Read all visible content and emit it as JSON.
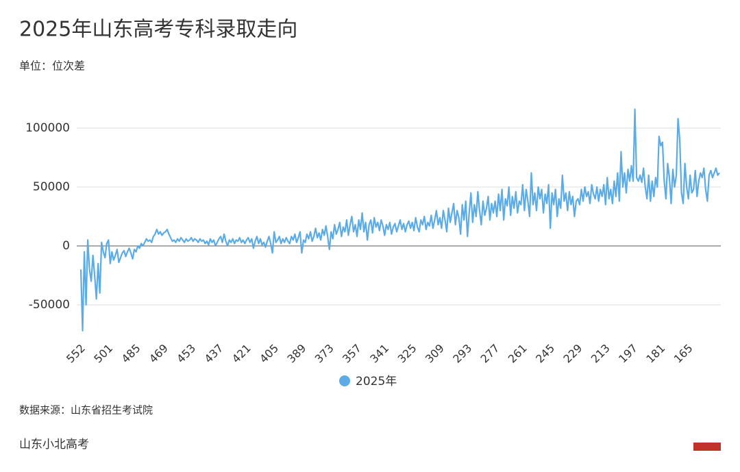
{
  "chart_data": {
    "type": "line",
    "title": "2025年山东高考专科录取走向",
    "subtitle": "单位：位次差",
    "source": "数据来源：山东省招生考试院",
    "footer": "山东小北高考",
    "categories": [
      "552",
      null,
      null,
      null,
      null,
      null,
      null,
      null,
      null,
      null,
      null,
      null,
      null,
      null,
      null,
      null,
      "501",
      null,
      null,
      null,
      null,
      null,
      null,
      null,
      null,
      null,
      null,
      null,
      null,
      null,
      null,
      null,
      "485",
      null,
      null,
      null,
      null,
      null,
      null,
      null,
      null,
      null,
      null,
      null,
      null,
      null,
      null,
      null,
      "469",
      null,
      null,
      null,
      null,
      null,
      null,
      null,
      null,
      null,
      null,
      null,
      null,
      null,
      null,
      null,
      "453",
      null,
      null,
      null,
      null,
      null,
      null,
      null,
      null,
      null,
      null,
      null,
      null,
      null,
      null,
      null,
      "437",
      null,
      null,
      null,
      null,
      null,
      null,
      null,
      null,
      null,
      null,
      null,
      null,
      null,
      null,
      null,
      "421",
      null,
      null,
      null,
      null,
      null,
      null,
      null,
      null,
      null,
      null,
      null,
      null,
      null,
      null,
      null,
      "405",
      null,
      null,
      null,
      null,
      null,
      null,
      null,
      null,
      null,
      null,
      null,
      null,
      null,
      null,
      null,
      "389",
      null,
      null,
      null,
      null,
      null,
      null,
      null,
      null,
      null,
      null,
      null,
      null,
      null,
      null,
      null,
      "373",
      null,
      null,
      null,
      null,
      null,
      null,
      null,
      null,
      null,
      null,
      null,
      null,
      null,
      null,
      null,
      "357",
      null,
      null,
      null,
      null,
      null,
      null,
      null,
      null,
      null,
      null,
      null,
      null,
      null,
      null,
      null,
      "341",
      null,
      null,
      null,
      null,
      null,
      null,
      null,
      null,
      null,
      null,
      null,
      null,
      null,
      null,
      null,
      "325",
      null,
      null,
      null,
      null,
      null,
      null,
      null,
      null,
      null,
      null,
      null,
      null,
      null,
      null,
      null,
      "309",
      null,
      null,
      null,
      null,
      null,
      null,
      null,
      null,
      null,
      null,
      null,
      null,
      null,
      null,
      null,
      "293",
      null,
      null,
      null,
      null,
      null,
      null,
      null,
      null,
      null,
      null,
      null,
      null,
      null,
      null,
      null,
      "277",
      null,
      null,
      null,
      null,
      null,
      null,
      null,
      null,
      null,
      null,
      null,
      null,
      null,
      null,
      null,
      "261",
      null,
      null,
      null,
      null,
      null,
      null,
      null,
      null,
      null,
      null,
      null,
      null,
      null,
      null,
      null,
      "245",
      null,
      null,
      null,
      null,
      null,
      null,
      null,
      null,
      null,
      null,
      null,
      null,
      null,
      null,
      null,
      "229",
      null,
      null,
      null,
      null,
      null,
      null,
      null,
      null,
      null,
      null,
      null,
      null,
      null,
      null,
      null,
      "213",
      null,
      null,
      null,
      null,
      null,
      null,
      null,
      null,
      null,
      null,
      null,
      null,
      null,
      null,
      null,
      "197",
      null,
      null,
      null,
      null,
      null,
      null,
      null,
      null,
      null,
      null,
      null,
      null,
      null,
      null,
      null,
      "181",
      null,
      null,
      null,
      null,
      null,
      null,
      null,
      null,
      null,
      null,
      null,
      null,
      null,
      null,
      null,
      "165",
      null,
      null,
      null,
      null,
      null,
      null,
      null,
      null,
      null,
      null,
      null,
      null,
      null,
      null,
      null,
      null,
      null,
      null
    ],
    "series": [
      {
        "name": "2025年",
        "color": "#5aabe6",
        "values": [
          -20000,
          -72000,
          -5000,
          -50000,
          5000,
          -20000,
          -30000,
          -8000,
          -25000,
          -45000,
          -15000,
          -40000,
          3000,
          -5000,
          -10000,
          2000,
          5000,
          -15000,
          -5000,
          -12000,
          -8000,
          -3000,
          -14000,
          -10000,
          -6000,
          -4000,
          -9000,
          -5000,
          -2000,
          -6000,
          -11000,
          -3000,
          -5000,
          0,
          -2000,
          2000,
          0,
          3000,
          6000,
          4000,
          5000,
          3000,
          8000,
          10000,
          14000,
          10000,
          12000,
          9000,
          11000,
          12000,
          14000,
          10000,
          7000,
          4000,
          5000,
          3000,
          6000,
          4000,
          7000,
          5000,
          3000,
          6000,
          4000,
          5000,
          7000,
          4000,
          6000,
          5000,
          3000,
          6000,
          4000,
          5000,
          2000,
          4000,
          1000,
          6000,
          3000,
          5000,
          0,
          3000,
          6000,
          8000,
          3000,
          10000,
          4000,
          0,
          5000,
          3000,
          6000,
          2000,
          5000,
          4000,
          7000,
          3000,
          5000,
          2000,
          5000,
          7000,
          3000,
          6000,
          -2000,
          4000,
          8000,
          2000,
          6000,
          1000,
          3000,
          -1000,
          4000,
          8000,
          2000,
          -6000,
          12000,
          3000,
          5000,
          8000,
          2000,
          6000,
          3000,
          7000,
          4000,
          2000,
          8000,
          5000,
          10000,
          3000,
          7000,
          12000,
          -6000,
          5000,
          3000,
          10000,
          6000,
          12000,
          4000,
          8000,
          15000,
          7000,
          11000,
          5000,
          14000,
          9000,
          17000,
          8000,
          -3000,
          12000,
          6000,
          18000,
          10000,
          14000,
          20000,
          8000,
          16000,
          12000,
          22000,
          9000,
          18000,
          25000,
          12000,
          18000,
          8000,
          22000,
          14000,
          28000,
          12000,
          20000,
          5000,
          18000,
          22000,
          11000,
          24000,
          16000,
          20000,
          13000,
          22000,
          17000,
          9000,
          18000,
          14000,
          20000,
          10000,
          16000,
          19000,
          12000,
          17000,
          22000,
          14000,
          19000,
          12000,
          18000,
          21000,
          15000,
          20000,
          13000,
          24000,
          16000,
          12000,
          22000,
          18000,
          25000,
          14000,
          20000,
          17000,
          26000,
          15000,
          22000,
          30000,
          18000,
          24000,
          15000,
          30000,
          22000,
          12000,
          32000,
          20000,
          28000,
          36000,
          18000,
          30000,
          24000,
          10000,
          35000,
          22000,
          38000,
          8000,
          28000,
          45000,
          20000,
          35000,
          25000,
          46000,
          30000,
          18000,
          38000,
          26000,
          32000,
          42000,
          22000,
          36000,
          28000,
          38000,
          25000,
          44000,
          30000,
          48000,
          22000,
          40000,
          34000,
          50000,
          26000,
          42000,
          32000,
          46000,
          28000,
          38000,
          35000,
          52000,
          30000,
          48000,
          38000,
          25000,
          62000,
          35000,
          45000,
          30000,
          50000,
          40000,
          48000,
          28000,
          44000,
          36000,
          52000,
          15000,
          45000,
          35000,
          48000,
          25000,
          40000,
          32000,
          60000,
          38000,
          45000,
          30000,
          46000,
          35000,
          42000,
          25000,
          38000,
          40000,
          35000,
          48000,
          38000,
          50000,
          42000,
          46000,
          36000,
          52000,
          44000,
          40000,
          50000,
          38000,
          48000,
          42000,
          52000,
          35000,
          58000,
          40000,
          48000,
          36000,
          55000,
          42000,
          62000,
          38000,
          80000,
          50000,
          62000,
          45000,
          65000,
          55000,
          68000,
          55000,
          116000,
          58000,
          55000,
          60000,
          54000,
          66000,
          50000,
          40000,
          60000,
          38000,
          55000,
          42000,
          58000,
          50000,
          93000,
          85000,
          88000,
          55000,
          40000,
          70000,
          58000,
          36000,
          65000,
          50000,
          60000,
          108000,
          90000,
          45000,
          36000,
          70000,
          50000,
          40000,
          60000,
          45000,
          48000,
          64000,
          42000,
          55000,
          62000,
          58000,
          66000,
          48000,
          38000,
          60000,
          64000,
          58000,
          62000,
          66000,
          60000,
          62000
        ]
      }
    ],
    "ylim": [
      -72000,
      120000
    ],
    "yticks": [
      -50000,
      0,
      50000,
      100000
    ],
    "grid": true
  }
}
